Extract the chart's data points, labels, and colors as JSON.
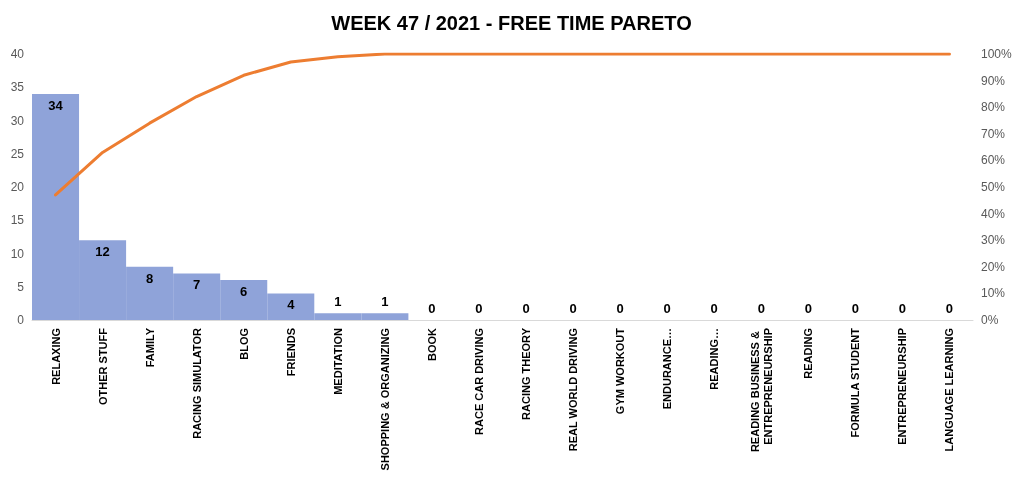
{
  "chart_data": {
    "type": "bar",
    "title": "WEEK 47 / 2021 - FREE TIME PARETO",
    "categories": [
      "RELAXING",
      "OTHER STUFF",
      "FAMILY",
      "RACING SIMULATOR",
      "BLOG",
      "FRIENDS",
      "MEDITATION",
      "SHOPPING & ORGANIZING",
      "BOOK",
      "RACE CAR DRIVING",
      "RACING THEORY",
      "REAL WORLD DRIVING",
      "GYM WORKOUT",
      "ENDURANCE…",
      "READING…",
      "READING BUSINESS & ENTREPRENEURSHIP",
      "READING",
      "FORMULA STUDENT",
      "ENTREPRENEURSHIP",
      "LANGUAGE LEARNING"
    ],
    "series": [
      {
        "color": "#8fa3d9",
        "values": [
          34,
          12,
          8,
          7,
          6,
          4,
          1,
          1,
          0,
          0,
          0,
          0,
          0,
          0,
          0,
          0,
          0,
          0,
          0,
          0
        ],
        "value_labels": [
          "34",
          "12",
          "8",
          "7",
          "6",
          "4",
          "1",
          "1",
          "0",
          "0",
          "0",
          "0",
          "0",
          "0",
          "0",
          "0",
          "0",
          "0",
          "0",
          "0"
        ]
      },
      {
        "type": "line",
        "axis": "y2",
        "color": "#ed7d31",
        "values": [
          47,
          63,
          74,
          84,
          92,
          97,
          99,
          100,
          100,
          100,
          100,
          100,
          100,
          100,
          100,
          100,
          100,
          100,
          100,
          100
        ]
      }
    ],
    "ylim": [
      0,
      40
    ],
    "yticks": [
      0,
      5,
      10,
      15,
      20,
      25,
      30,
      35,
      40
    ],
    "y2lim": [
      0,
      100
    ],
    "y2ticks": [
      {
        "value": 0,
        "label": "0%"
      },
      {
        "value": 10,
        "label": "10%"
      },
      {
        "value": 20,
        "label": "20%"
      },
      {
        "value": 30,
        "label": "30%"
      },
      {
        "value": 40,
        "label": "40%"
      },
      {
        "value": 50,
        "label": "50%"
      },
      {
        "value": 60,
        "label": "60%"
      },
      {
        "value": 70,
        "label": "70%"
      },
      {
        "value": 80,
        "label": "80%"
      },
      {
        "value": 90,
        "label": "90%"
      },
      {
        "value": 100,
        "label": "100%"
      }
    ],
    "grid": false,
    "marker": "none",
    "line_style": "solid"
  }
}
